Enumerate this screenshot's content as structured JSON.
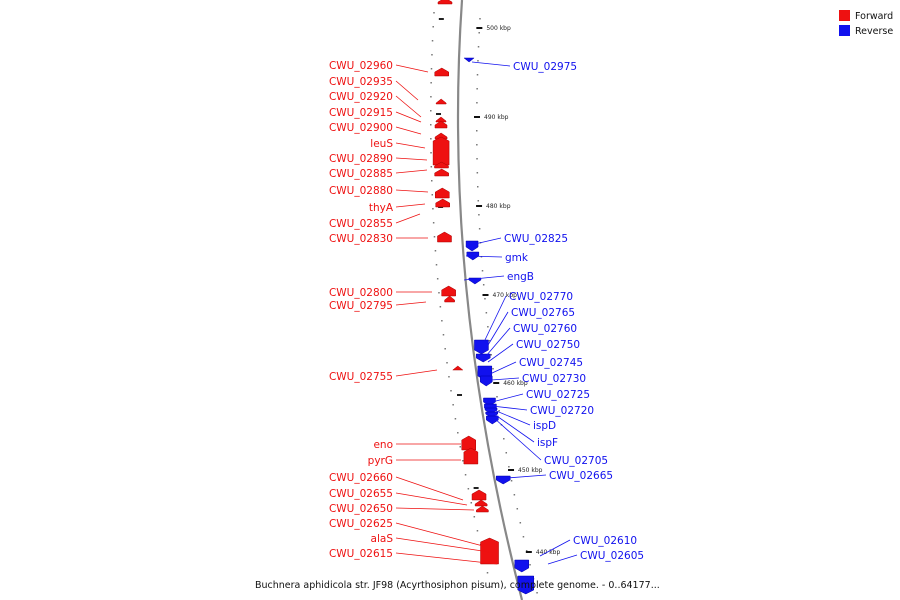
{
  "legend": {
    "forward_label": "Forward",
    "reverse_label": "Reverse",
    "forward_color": "#ee1111",
    "reverse_color": "#1111ee"
  },
  "caption": "Buchnera aphidicola str. JF98 (Acyrthosiphon pisum), complete genome. - 0..64177...",
  "kbp_ticks": [
    "500 kbp",
    "490 kbp",
    "480 kbp",
    "470 kbp",
    "460 kbp",
    "450 kbp",
    "440 kbp"
  ],
  "forward_genes": [
    "CWU_02960",
    "CWU_02935",
    "CWU_02920",
    "CWU_02915",
    "CWU_02900",
    "leuS",
    "CWU_02890",
    "CWU_02885",
    "CWU_02880",
    "thyA",
    "CWU_02855",
    "CWU_02830",
    "CWU_02800",
    "CWU_02795",
    "CWU_02755",
    "eno",
    "pyrG",
    "CWU_02660",
    "CWU_02655",
    "CWU_02650",
    "CWU_02625",
    "alaS",
    "CWU_02615"
  ],
  "reverse_genes": [
    "CWU_02975",
    "CWU_02825",
    "gmk",
    "engB",
    "CWU_02770",
    "CWU_02765",
    "CWU_02760",
    "CWU_02750",
    "CWU_02745",
    "CWU_02730",
    "CWU_02725",
    "CWU_02720",
    "ispD",
    "ispF",
    "CWU_02705",
    "CWU_02665",
    "CWU_02610",
    "CWU_02605"
  ]
}
